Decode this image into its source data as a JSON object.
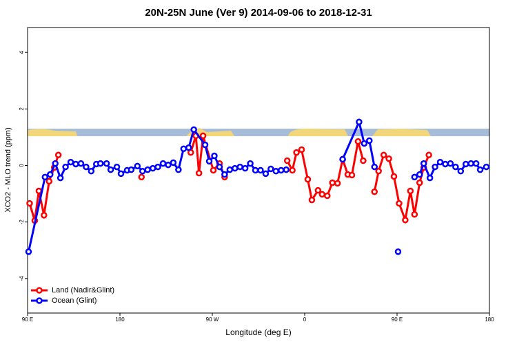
{
  "chart_data": {
    "type": "line",
    "title": "20N-25N June (Ver 9)   2014-09-06 to 2018-12-31",
    "xlabel": "Longitude (deg E)",
    "ylabel": "XCO2 - MLO trend (ppm)",
    "xlim": [
      90,
      540
    ],
    "ylim": [
      -5.22,
      4.88
    ],
    "xticks": [
      {
        "value": 90,
        "label": "90 E"
      },
      180,
      {
        "value": 270,
        "label": "90 W"
      },
      {
        "value": 360,
        "label": "0"
      },
      {
        "value": 450,
        "label": "90 E"
      },
      {
        "value": 540,
        "label": "180"
      }
    ],
    "yticks": [
      -4,
      -2,
      0,
      2,
      4
    ],
    "legend": "bottom-left",
    "series": [
      {
        "name": "Land (Nadir&Glint)",
        "color": "#ff0000",
        "x": [
          92,
          97,
          101,
          106,
          111,
          116,
          120,
          160,
          201,
          225,
          249,
          254,
          257,
          261,
          271,
          277,
          282,
          312,
          343,
          348,
          352,
          357,
          363,
          367,
          373,
          377,
          382,
          387,
          392,
          397,
          402,
          406,
          412,
          417,
          422,
          428,
          432,
          437,
          442,
          447,
          452,
          458,
          463,
          467,
          472,
          476,
          481
        ],
        "values": [
          -1.34,
          -1.95,
          -0.9,
          -1.76,
          -0.56,
          -0.07,
          0.37,
          null,
          -0.41,
          null,
          0.46,
          1.05,
          -0.27,
          1.05,
          -0.17,
          0.07,
          -0.41,
          null,
          0.17,
          -0.17,
          0.46,
          0.56,
          -0.49,
          -1.22,
          -0.88,
          -1.02,
          -1.07,
          -0.61,
          -0.63,
          0.22,
          -0.32,
          -0.34,
          0.85,
          0.17,
          null,
          -0.93,
          -0.2,
          0.37,
          0.24,
          -0.39,
          -1.34,
          -1.93,
          -0.9,
          -1.73,
          -0.61,
          -0.07,
          0.37
        ]
      },
      {
        "name": "Ocean (Glint)",
        "color": "#0000ff",
        "x": [
          91,
          107,
          112,
          117,
          122,
          127,
          132,
          137,
          142,
          147,
          152,
          157,
          161,
          167,
          171,
          177,
          181,
          187,
          191,
          197,
          202,
          207,
          212,
          217,
          222,
          227,
          232,
          237,
          242,
          247,
          252,
          263,
          267,
          272,
          277,
          282,
          287,
          292,
          297,
          302,
          307,
          312,
          317,
          322,
          327,
          332,
          337,
          342,
          370,
          397,
          413,
          418,
          423,
          428,
          440,
          451,
          460,
          467,
          472,
          476,
          482,
          487,
          492,
          497,
          502,
          507,
          512,
          517,
          522,
          527,
          531,
          537
        ],
        "values": [
          -3.05,
          -0.41,
          -0.32,
          0.07,
          -0.44,
          -0.05,
          0.12,
          0.05,
          0.07,
          -0.05,
          -0.2,
          0.05,
          0.07,
          0.07,
          -0.15,
          -0.05,
          -0.29,
          -0.17,
          -0.15,
          -0.02,
          -0.2,
          -0.15,
          -0.1,
          -0.05,
          0.07,
          0.02,
          0.1,
          -0.15,
          0.59,
          0.63,
          1.27,
          0.73,
          0.15,
          0.34,
          -0.05,
          -0.32,
          -0.15,
          -0.1,
          -0.05,
          -0.1,
          0.07,
          -0.17,
          -0.17,
          -0.29,
          -0.12,
          -0.2,
          -0.17,
          -0.15,
          null,
          0.22,
          1.54,
          0.78,
          0.88,
          -0.05,
          null,
          -3.05,
          null,
          -0.41,
          -0.32,
          0.07,
          -0.44,
          -0.05,
          0.12,
          0.05,
          0.07,
          -0.05,
          -0.2,
          0.05,
          0.07,
          0.07,
          -0.15,
          -0.05
        ]
      }
    ]
  }
}
